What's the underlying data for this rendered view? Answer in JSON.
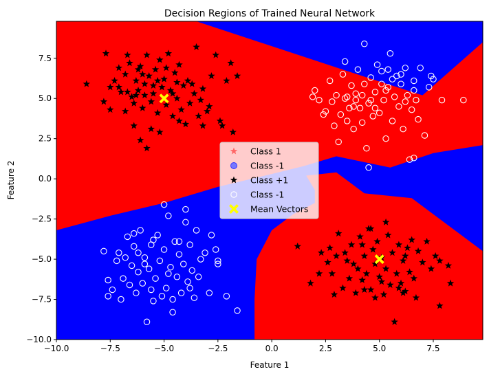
{
  "chart_data": {
    "type": "scatter",
    "title": "Decision Regions of Trained Neural Network",
    "xlabel": "Feature 1",
    "ylabel": "Feature 2",
    "xlim": [
      -10,
      9.8
    ],
    "ylim": [
      -10,
      9.8
    ],
    "xticks": [
      -10,
      -7.5,
      -5,
      -2.5,
      0,
      2.5,
      5,
      7.5
    ],
    "yticks": [
      -10,
      -7.5,
      -5,
      -2.5,
      0,
      2.5,
      5,
      7.5
    ],
    "xtick_labels": [
      "−10.0",
      "−7.5",
      "−5.0",
      "−2.5",
      "0.0",
      "2.5",
      "5.0",
      "7.5"
    ],
    "ytick_labels": [
      "−10.0",
      "−7.5",
      "−5.0",
      "−2.5",
      "0.0",
      "2.5",
      "5.0",
      "7.5"
    ],
    "grid": false,
    "legend_position": "center",
    "region_colors": {
      "class_plus_1": "#ff0000",
      "class_minus_1": "#0000ff"
    },
    "regions": {
      "class_plus_1": [
        [
          [
            -10,
            -3.2
          ],
          [
            -7.5,
            -2.3
          ],
          [
            -5,
            -1.5
          ],
          [
            -2.5,
            -0.5
          ],
          [
            0,
            0.3
          ],
          [
            1.5,
            0.8
          ],
          [
            3,
            1.4
          ],
          [
            5.5,
            0.7
          ],
          [
            7.5,
            1.6
          ],
          [
            9.8,
            2.1
          ],
          [
            9.8,
            8.5
          ],
          [
            7,
            5.2
          ],
          [
            4.2,
            6.4
          ],
          [
            -3.5,
            9.8
          ],
          [
            -10,
            9.8
          ]
        ],
        [
          [
            -0.8,
            -10
          ],
          [
            -0.8,
            -7.5
          ],
          [
            -0.7,
            -5
          ],
          [
            0,
            -3.2
          ],
          [
            1,
            -2.2
          ],
          [
            2,
            -1.5
          ],
          [
            2,
            -0.7
          ],
          [
            1.6,
            0.2
          ],
          [
            3,
            0.4
          ],
          [
            4.3,
            -0.9
          ],
          [
            6.5,
            -1.2
          ],
          [
            9.8,
            -4.5
          ],
          [
            9.8,
            -10
          ]
        ],
        [
          [
            7.1,
            5.2
          ],
          [
            9.8,
            7.4
          ],
          [
            9.8,
            8.4
          ]
        ],
        [
          [
            8.1,
            3.1
          ],
          [
            9.8,
            4.1
          ],
          [
            9.8,
            3.4
          ]
        ]
      ]
    },
    "series": [
      {
        "name": "Class +1",
        "marker": "star",
        "color": "#000000",
        "points": [
          [
            -8.6,
            5.9
          ],
          [
            -7.7,
            7.8
          ],
          [
            -7.5,
            5.7
          ],
          [
            -7.3,
            6.1
          ],
          [
            -7.1,
            6.9
          ],
          [
            -7,
            5.4
          ],
          [
            -6.8,
            6.5
          ],
          [
            -6.7,
            7.7
          ],
          [
            -6.6,
            7.2
          ],
          [
            -6.5,
            5.1
          ],
          [
            -6.4,
            4.7
          ],
          [
            -6.3,
            6.1
          ],
          [
            -6.2,
            5.5
          ],
          [
            -6.1,
            7
          ],
          [
            -6,
            4.4
          ],
          [
            -5.9,
            5.9
          ],
          [
            -5.8,
            7.7
          ],
          [
            -5.7,
            6.4
          ],
          [
            -5.6,
            4.8
          ],
          [
            -5.5,
            5.3
          ],
          [
            -5.4,
            6.8
          ],
          [
            -5.3,
            4.1
          ],
          [
            -5.2,
            7.4
          ],
          [
            -5.1,
            5.7
          ],
          [
            -5,
            6.2
          ],
          [
            -4.9,
            4.6
          ],
          [
            -4.8,
            7.8
          ],
          [
            -4.7,
            5.5
          ],
          [
            -4.6,
            3.9
          ],
          [
            -4.5,
            6.6
          ],
          [
            -4.4,
            5
          ],
          [
            -4.3,
            7.1
          ],
          [
            -4.2,
            4.3
          ],
          [
            -4.1,
            5.8
          ],
          [
            -4,
            3.4
          ],
          [
            -3.9,
            6.1
          ],
          [
            -3.8,
            4.7
          ],
          [
            -3.6,
            5.3
          ],
          [
            -3.5,
            8.2
          ],
          [
            -3.4,
            3.9
          ],
          [
            -3.2,
            5.6
          ],
          [
            -3,
            4.2
          ],
          [
            -2.8,
            6.4
          ],
          [
            -2.6,
            7.7
          ],
          [
            -2.4,
            3.6
          ],
          [
            -2.3,
            3.3
          ],
          [
            -2.1,
            6.1
          ],
          [
            -1.9,
            7.2
          ],
          [
            -1.8,
            2.9
          ],
          [
            -1.6,
            6.4
          ],
          [
            -5.8,
            1.9
          ],
          [
            -6.1,
            2.4
          ],
          [
            -5.6,
            3.1
          ],
          [
            -7.8,
            4.8
          ],
          [
            -7.5,
            4.3
          ],
          [
            -6.8,
            4.2
          ],
          [
            -6.4,
            3.3
          ],
          [
            -5.2,
            2.9
          ],
          [
            -4.3,
            3.6
          ],
          [
            -3.2,
            3.3
          ],
          [
            -6.3,
            5.2
          ],
          [
            -5.5,
            5.8
          ],
          [
            -4.6,
            5.3
          ],
          [
            -4.9,
            6.9
          ],
          [
            -6.2,
            6.8
          ],
          [
            -7.1,
            5.7
          ],
          [
            -6.7,
            5.4
          ],
          [
            -5.9,
            5.2
          ],
          [
            -4.4,
            6
          ],
          [
            -3.7,
            5.9
          ],
          [
            -3.3,
            4.9
          ],
          [
            -2.9,
            4.5
          ],
          [
            -5.3,
            6.1
          ],
          [
            -6,
            6.5
          ],
          [
            1.2,
            -4.2
          ],
          [
            1.8,
            -6.5
          ],
          [
            2.3,
            -4.6
          ],
          [
            2.6,
            -5.2
          ],
          [
            2.8,
            -5.9
          ],
          [
            3,
            -4.8
          ],
          [
            3.1,
            -3.4
          ],
          [
            3.3,
            -6.8
          ],
          [
            3.5,
            -5.1
          ],
          [
            3.7,
            -4.1
          ],
          [
            3.9,
            -7.1
          ],
          [
            4,
            -5.6
          ],
          [
            4.1,
            -3.6
          ],
          [
            4.2,
            -6.3
          ],
          [
            4.3,
            -4.8
          ],
          [
            4.4,
            -5.9
          ],
          [
            4.5,
            -3.1
          ],
          [
            4.6,
            -6.9
          ],
          [
            4.7,
            -4.4
          ],
          [
            4.8,
            -5.3
          ],
          [
            4.9,
            -3.9
          ],
          [
            5,
            -6.1
          ],
          [
            5.1,
            -4.9
          ],
          [
            5.2,
            -7.2
          ],
          [
            5.3,
            -5.6
          ],
          [
            5.4,
            -3.5
          ],
          [
            5.5,
            -6.6
          ],
          [
            5.6,
            -4.6
          ],
          [
            5.7,
            -8.9
          ],
          [
            5.8,
            -5.9
          ],
          [
            5.9,
            -4.1
          ],
          [
            6,
            -6.5
          ],
          [
            6.1,
            -5.1
          ],
          [
            6.2,
            -7
          ],
          [
            6.3,
            -4.3
          ],
          [
            6.4,
            -5.8
          ],
          [
            6.5,
            -3.8
          ],
          [
            6.6,
            -6.2
          ],
          [
            6.8,
            -4.5
          ],
          [
            7,
            -5.2
          ],
          [
            7.2,
            -3.9
          ],
          [
            7.4,
            -5.6
          ],
          [
            7.6,
            -4.8
          ],
          [
            7.8,
            -5.1
          ],
          [
            8.2,
            -5.4
          ],
          [
            8.3,
            -6.5
          ],
          [
            7.8,
            -7.9
          ],
          [
            6.1,
            -7.1
          ],
          [
            4.8,
            -7.4
          ],
          [
            5.3,
            -2.7
          ],
          [
            4.6,
            -3.1
          ],
          [
            3.8,
            -5.3
          ],
          [
            2.2,
            -5.9
          ],
          [
            2.7,
            -4.3
          ],
          [
            6.7,
            -7.4
          ],
          [
            5.9,
            -6.8
          ],
          [
            3.4,
            -4.6
          ],
          [
            4.2,
            -4.1
          ],
          [
            5.1,
            -6.4
          ],
          [
            4.3,
            -6.9
          ],
          [
            2.9,
            -7.2
          ],
          [
            3.6,
            -6.2
          ],
          [
            6.2,
            -4.8
          ]
        ]
      },
      {
        "name": "Class -1",
        "marker": "open-circle",
        "color": "#ffffff",
        "points": [
          [
            -7.8,
            -4.5
          ],
          [
            -7.6,
            -6.3
          ],
          [
            -7.4,
            -6.9
          ],
          [
            -7.2,
            -5.1
          ],
          [
            -7.1,
            -4.6
          ],
          [
            -7,
            -7.5
          ],
          [
            -6.9,
            -6.2
          ],
          [
            -6.8,
            -4.9
          ],
          [
            -6.7,
            -3.6
          ],
          [
            -6.6,
            -6.6
          ],
          [
            -6.5,
            -5.4
          ],
          [
            -6.4,
            -4.2
          ],
          [
            -6.3,
            -7.1
          ],
          [
            -6.2,
            -5.8
          ],
          [
            -6.1,
            -3.2
          ],
          [
            -6,
            -6.5
          ],
          [
            -5.9,
            -4.9
          ],
          [
            -5.8,
            -8.9
          ],
          [
            -5.7,
            -5.6
          ],
          [
            -5.6,
            -4.1
          ],
          [
            -5.5,
            -7.6
          ],
          [
            -5.4,
            -6.2
          ],
          [
            -5.3,
            -3.5
          ],
          [
            -5.2,
            -5.1
          ],
          [
            -5.1,
            -7.3
          ],
          [
            -5,
            -4.4
          ],
          [
            -4.9,
            -6.8
          ],
          [
            -4.8,
            -2.3
          ],
          [
            -4.7,
            -5.5
          ],
          [
            -4.6,
            -8.3
          ],
          [
            -4.5,
            -3.9
          ],
          [
            -4.4,
            -6.1
          ],
          [
            -4.3,
            -4.7
          ],
          [
            -4.2,
            -7.1
          ],
          [
            -4.1,
            -5.3
          ],
          [
            -4,
            -2.7
          ],
          [
            -3.9,
            -6.4
          ],
          [
            -3.8,
            -4.1
          ],
          [
            -3.7,
            -5.7
          ],
          [
            -3.6,
            -7.4
          ],
          [
            -3.5,
            -3.2
          ],
          [
            -3.4,
            -6.1
          ],
          [
            -3.3,
            -5
          ],
          [
            -3.1,
            -4.6
          ],
          [
            -2.9,
            -7.1
          ],
          [
            -2.8,
            -3.5
          ],
          [
            -2.5,
            -5.1
          ],
          [
            -2.1,
            -7.3
          ],
          [
            -1.6,
            -8.2
          ],
          [
            -5,
            -1.6
          ],
          [
            -4,
            -1.9
          ],
          [
            -6.4,
            -3.4
          ],
          [
            -5.5,
            -3.8
          ],
          [
            -4.8,
            -5.9
          ],
          [
            -5.9,
            -5.3
          ],
          [
            -6.2,
            -4.6
          ],
          [
            -4.3,
            -3.9
          ],
          [
            -3.8,
            -6.8
          ],
          [
            -2.5,
            -5.3
          ],
          [
            -2.6,
            -4.4
          ],
          [
            -7.6,
            -7.3
          ],
          [
            -4.6,
            -7.5
          ],
          [
            -5.6,
            -6.9
          ],
          [
            2.2,
            4.9
          ],
          [
            2.5,
            4.2
          ],
          [
            2.7,
            6.1
          ],
          [
            2.9,
            3.3
          ],
          [
            3,
            5.2
          ],
          [
            3.1,
            2.3
          ],
          [
            3.2,
            4
          ],
          [
            3.3,
            6.5
          ],
          [
            3.4,
            5
          ],
          [
            3.5,
            3.6
          ],
          [
            3.6,
            4.4
          ],
          [
            3.7,
            5.8
          ],
          [
            3.8,
            3.1
          ],
          [
            3.9,
            5.3
          ],
          [
            4,
            6.8
          ],
          [
            4.1,
            4.4
          ],
          [
            4.2,
            3.5
          ],
          [
            4.3,
            5.9
          ],
          [
            4.4,
            1.9
          ],
          [
            4.5,
            4.7
          ],
          [
            4.6,
            6.3
          ],
          [
            4.7,
            3.9
          ],
          [
            4.8,
            5.4
          ],
          [
            4.9,
            7.1
          ],
          [
            5,
            4.1
          ],
          [
            5.1,
            6.7
          ],
          [
            5.2,
            4.9
          ],
          [
            5.3,
            2.5
          ],
          [
            5.4,
            5.7
          ],
          [
            5.5,
            7.8
          ],
          [
            5.6,
            3.6
          ],
          [
            5.7,
            5.1
          ],
          [
            5.8,
            6.4
          ],
          [
            5.9,
            4.5
          ],
          [
            6,
            5.9
          ],
          [
            6.1,
            3.1
          ],
          [
            6.2,
            6.9
          ],
          [
            6.3,
            5.2
          ],
          [
            6.4,
            1.2
          ],
          [
            6.5,
            4.3
          ],
          [
            6.6,
            6.1
          ],
          [
            6.7,
            4.9
          ],
          [
            6.8,
            3.7
          ],
          [
            6.9,
            6.9
          ],
          [
            7.1,
            2.7
          ],
          [
            7.3,
            5.7
          ],
          [
            7.5,
            6.2
          ],
          [
            7.9,
            4.9
          ],
          [
            8.9,
            4.9
          ],
          [
            4.3,
            8.4
          ],
          [
            4.5,
            0.7
          ],
          [
            6.6,
            1.3
          ],
          [
            1.9,
            5.1
          ],
          [
            2,
            5.5
          ],
          [
            2.4,
            4
          ],
          [
            3.5,
            5.1
          ],
          [
            4.2,
            5.2
          ],
          [
            4.8,
            4.4
          ],
          [
            5.6,
            6.2
          ],
          [
            6,
            6.5
          ],
          [
            5.3,
            5.5
          ],
          [
            3.8,
            4.5
          ],
          [
            4.6,
            4.9
          ],
          [
            7.4,
            6.4
          ],
          [
            6.2,
            4.8
          ],
          [
            5.4,
            6.8
          ],
          [
            3.4,
            7.3
          ],
          [
            2.8,
            4.8
          ],
          [
            3.9,
            4.9
          ],
          [
            5.1,
            5.9
          ],
          [
            6.6,
            5.5
          ]
        ]
      }
    ],
    "mean_vectors": [
      [
        -5,
        5
      ],
      [
        5,
        -5
      ]
    ],
    "mean_vector_color": "#ffff00",
    "legend": [
      {
        "label": "Class 1",
        "marker": "star",
        "color": "#ff6666"
      },
      {
        "label": "Class -1",
        "marker": "circle",
        "color": "#7777ff"
      },
      {
        "label": "Class +1",
        "marker": "star",
        "color": "#000000"
      },
      {
        "label": "Class -1",
        "marker": "open-circle",
        "color": "#ffffff"
      },
      {
        "label": "Mean Vectors",
        "marker": "x",
        "color": "#ffff00"
      }
    ]
  }
}
